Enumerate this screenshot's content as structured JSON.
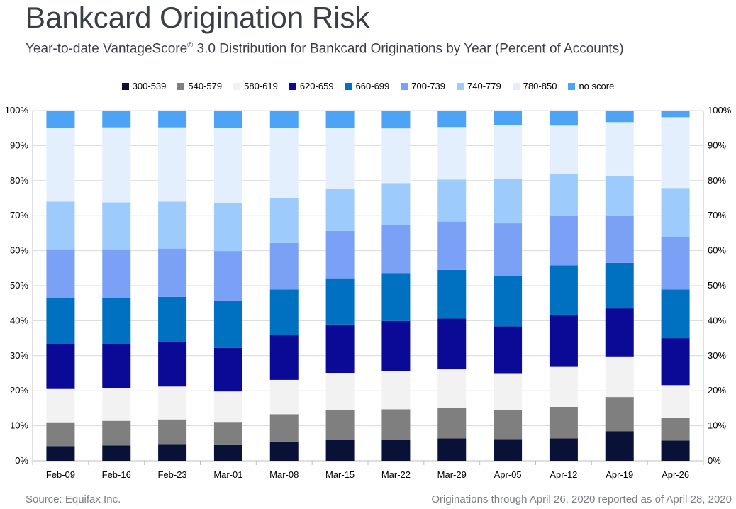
{
  "header": {
    "title": "Bankcard Origination Risk",
    "subtitle_main": "Year-to-date VantageScore",
    "subtitle_mark": "®",
    "subtitle_rest": " 3.0 Distribution for Bankcard Originations by Year (Percent of Accounts)"
  },
  "footer": {
    "source": "Source: Equifax Inc.",
    "note": "Originations through April 26, 2020 reported as of April 28, 2020"
  },
  "chart_data": {
    "type": "bar",
    "stacked": true,
    "categories": [
      "Feb-09",
      "Feb-16",
      "Feb-23",
      "Mar-01",
      "Mar-08",
      "Mar-15",
      "Mar-22",
      "Mar-29",
      "Apr-05",
      "Apr-12",
      "Apr-19",
      "Apr-26"
    ],
    "ylim": [
      0,
      100
    ],
    "y_ticks": [
      "0%",
      "10%",
      "20%",
      "30%",
      "40%",
      "50%",
      "60%",
      "70%",
      "80%",
      "90%",
      "100%"
    ],
    "y_axis_both_sides": true,
    "grid": true,
    "legend_position": "top",
    "series": [
      {
        "name": "300-539",
        "color": "#0a1136",
        "values": [
          4.2,
          4.4,
          4.6,
          4.5,
          5.5,
          6.0,
          6.0,
          6.4,
          6.2,
          6.4,
          8.4,
          5.8
        ]
      },
      {
        "name": "540-579",
        "color": "#7f7f7f",
        "values": [
          6.8,
          7.0,
          7.2,
          6.6,
          7.8,
          8.6,
          8.7,
          8.8,
          8.4,
          9.0,
          9.8,
          6.4
        ]
      },
      {
        "name": "580-619",
        "color": "#f2f2f2",
        "values": [
          9.5,
          9.3,
          9.4,
          8.7,
          9.8,
          10.5,
          10.9,
          10.9,
          10.4,
          11.6,
          11.6,
          9.4
        ]
      },
      {
        "name": "620-659",
        "color": "#0a0a96",
        "values": [
          12.9,
          12.7,
          12.8,
          12.4,
          12.9,
          13.8,
          14.3,
          14.5,
          13.4,
          14.5,
          13.7,
          13.4
        ]
      },
      {
        "name": "660-699",
        "color": "#0070c0",
        "values": [
          13.0,
          13.0,
          12.8,
          13.4,
          12.9,
          13.2,
          13.7,
          13.9,
          14.3,
          14.3,
          13.0,
          13.9
        ]
      },
      {
        "name": "700-739",
        "color": "#7ba1f7",
        "values": [
          14.0,
          14.0,
          13.8,
          14.3,
          13.3,
          13.5,
          13.8,
          13.8,
          15.1,
          14.2,
          13.5,
          15.0
        ]
      },
      {
        "name": "740-779",
        "color": "#9dcbfb",
        "values": [
          13.6,
          13.4,
          13.4,
          13.7,
          12.9,
          12.0,
          11.9,
          12.0,
          12.8,
          11.9,
          11.4,
          14.0
        ]
      },
      {
        "name": "780-850",
        "color": "#e4effd",
        "values": [
          21.0,
          21.4,
          21.2,
          21.5,
          20.0,
          17.4,
          15.6,
          15.0,
          15.2,
          13.8,
          15.3,
          20.2
        ]
      },
      {
        "name": "no score",
        "color": "#4da3f5",
        "values": [
          5.0,
          4.8,
          4.8,
          4.9,
          4.9,
          5.0,
          5.1,
          4.7,
          4.2,
          4.3,
          3.3,
          1.9
        ]
      }
    ]
  }
}
